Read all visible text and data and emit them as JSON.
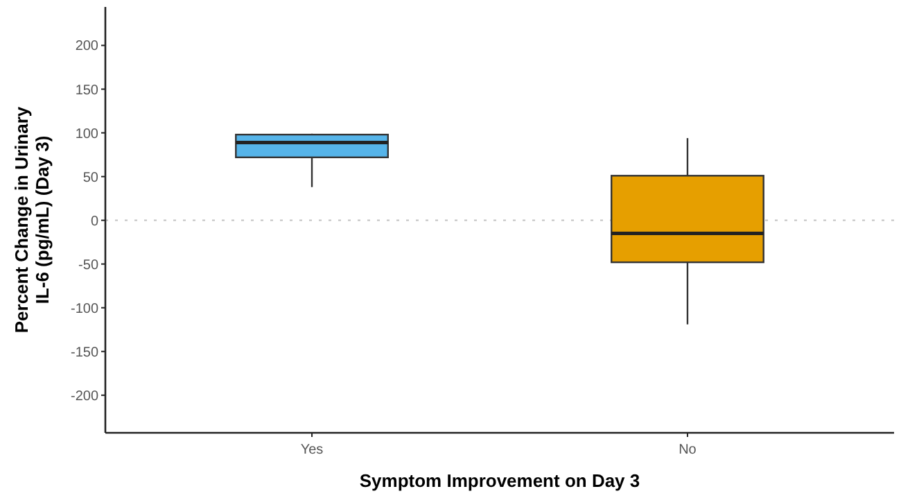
{
  "chart_data": {
    "type": "box",
    "xlabel": "Symptom Improvement on Day 3",
    "ylabel": "Percent Change in Urinary IL-6 (pg/mL) (Day 3)",
    "categories": [
      "Yes",
      "No"
    ],
    "colors": [
      "#56b4e9",
      "#e69f00"
    ],
    "boxes": [
      {
        "low": 38,
        "q1": 72,
        "median": 89,
        "q3": 98,
        "high": 99
      },
      {
        "low": -119,
        "q1": -48,
        "median": -15,
        "q3": 51,
        "high": 94
      }
    ],
    "ylim": [
      -243,
      244
    ],
    "yticks": [
      -200,
      -150,
      -100,
      -50,
      0,
      50,
      100,
      150,
      200
    ],
    "grid": false,
    "ref_lines": [
      {
        "axis": "y",
        "value": 0,
        "color": "#c8c8c8",
        "line_style": "dotted"
      }
    ]
  }
}
